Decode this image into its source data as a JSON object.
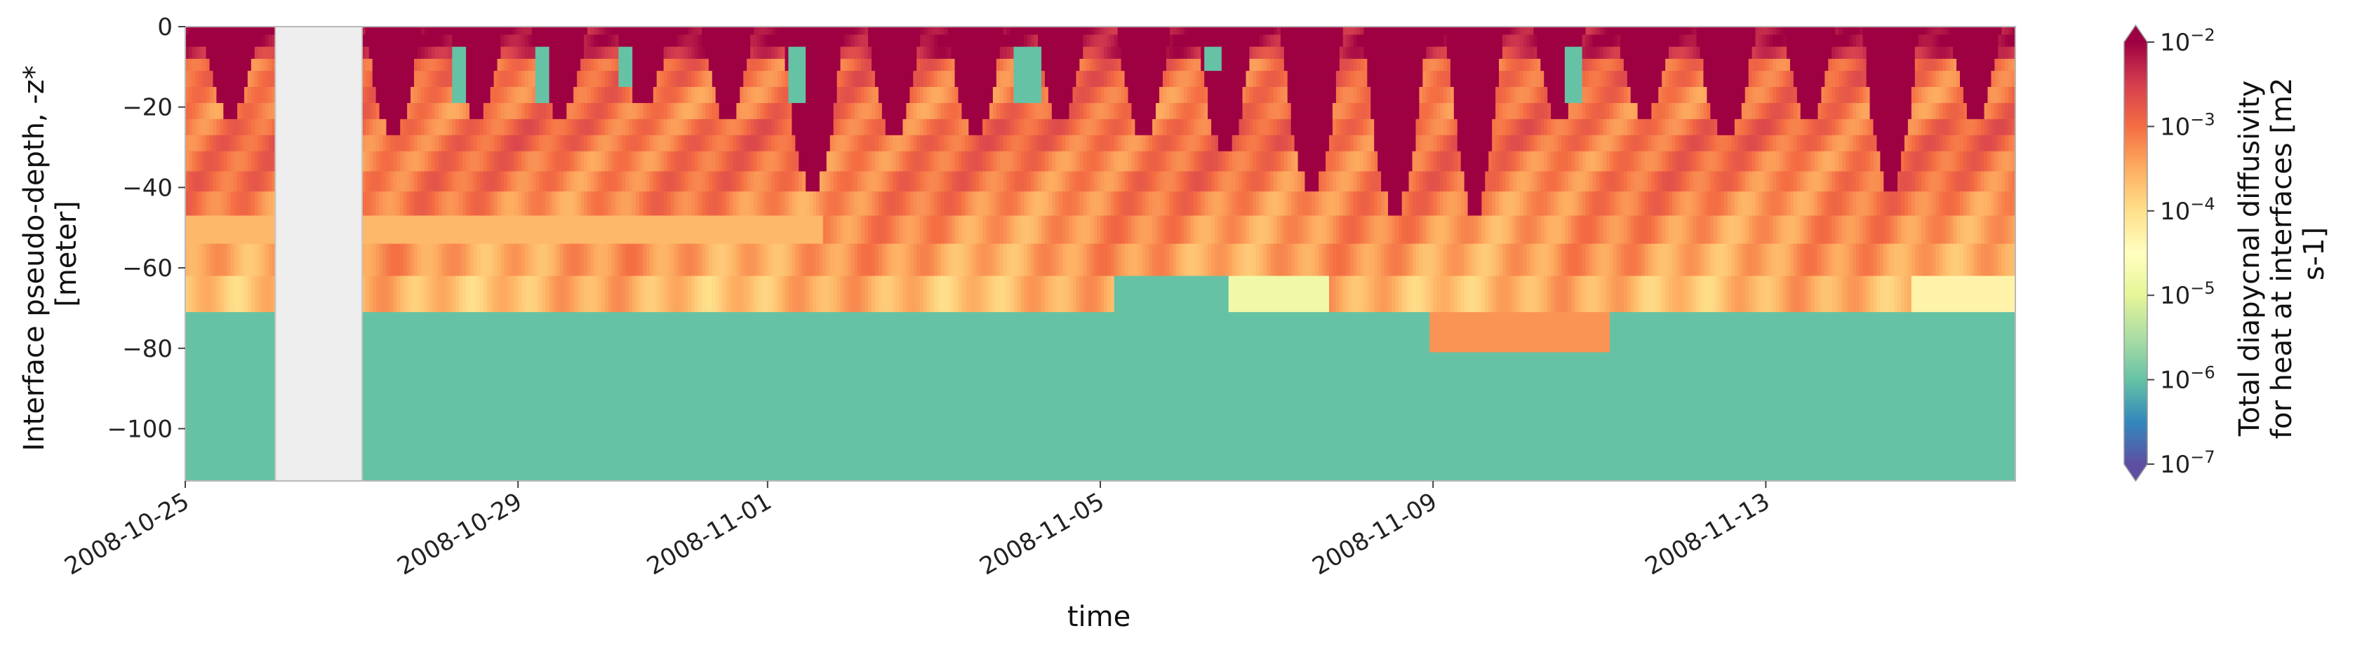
{
  "chart_data": {
    "type": "heatmap",
    "xlabel": "time",
    "ylabel_lines": [
      "Interface pseudo-depth, -z*",
      "[meter]"
    ],
    "x_range": [
      "2008-10-25",
      "2008-11-16"
    ],
    "y_range": [
      -113,
      0
    ],
    "x_ticks": [
      {
        "label": "2008-10-25",
        "date": "2008-10-25"
      },
      {
        "label": "2008-10-29",
        "date": "2008-10-29"
      },
      {
        "label": "2008-11-01",
        "date": "2008-11-01"
      },
      {
        "label": "2008-11-05",
        "date": "2008-11-05"
      },
      {
        "label": "2008-11-09",
        "date": "2008-11-09"
      },
      {
        "label": "2008-11-13",
        "date": "2008-11-13"
      }
    ],
    "y_ticks": [
      {
        "label": "0",
        "value": 0
      },
      {
        "label": "−20",
        "value": -20
      },
      {
        "label": "−40",
        "value": -40
      },
      {
        "label": "−60",
        "value": -60
      },
      {
        "label": "−80",
        "value": -80
      },
      {
        "label": "−100",
        "value": -100
      }
    ],
    "missing_period": [
      "2008-10-26T02:00",
      "2008-10-27T03:00"
    ],
    "colorbar": {
      "label_lines": [
        "Total diapycnal diffusivity",
        "for heat at interfaces [m2",
        "s-1]"
      ],
      "scale": "log",
      "range": [
        1e-07,
        0.01
      ],
      "extend": "both",
      "ticks": [
        {
          "base": "10",
          "exp": "−2",
          "value": 0.01
        },
        {
          "base": "10",
          "exp": "−3",
          "value": 0.001
        },
        {
          "base": "10",
          "exp": "−4",
          "value": 0.0001
        },
        {
          "base": "10",
          "exp": "−5",
          "value": 1e-05
        },
        {
          "base": "10",
          "exp": "−6",
          "value": 1e-06
        },
        {
          "base": "10",
          "exp": "−7",
          "value": 1e-07
        }
      ]
    },
    "colormap": "Spectral_r",
    "interfaces_m": [
      -2,
      -5,
      -8,
      -11,
      -15,
      -19,
      -23,
      -27,
      -31,
      -36,
      -41,
      -47,
      -54,
      -62,
      -71,
      -81,
      -113
    ],
    "background_log10_by_band": [
      -2.1,
      -2.1,
      -2.4,
      -3.0,
      -3.0,
      -3.1,
      -3.1,
      -3.0,
      -3.0,
      -3.1,
      -3.1,
      -3.2,
      -3.3,
      -3.4,
      -3.6,
      -6.0,
      -6.0
    ],
    "night_mixing": [
      {
        "start": "2008-10-25T05:00",
        "end": "2008-10-25T21:00",
        "depth": -23
      },
      {
        "start": "2008-10-27T04:00",
        "end": "2008-10-27T20:00",
        "depth": -27
      },
      {
        "start": "2008-10-28T04:00",
        "end": "2008-10-28T20:00",
        "depth": -23
      },
      {
        "start": "2008-10-29T04:00",
        "end": "2008-10-29T20:00",
        "depth": -23
      },
      {
        "start": "2008-10-30T04:00",
        "end": "2008-10-30T20:00",
        "depth": -19
      },
      {
        "start": "2008-10-31T05:00",
        "end": "2008-10-31T20:00",
        "depth": -23
      },
      {
        "start": "2008-11-01T04:00",
        "end": "2008-11-01T22:00",
        "depth": -41
      },
      {
        "start": "2008-11-02T05:00",
        "end": "2008-11-02T20:00",
        "depth": -27
      },
      {
        "start": "2008-11-03T04:00",
        "end": "2008-11-03T20:00",
        "depth": -27
      },
      {
        "start": "2008-11-04T05:00",
        "end": "2008-11-04T20:00",
        "depth": -23
      },
      {
        "start": "2008-11-05T05:00",
        "end": "2008-11-05T20:00",
        "depth": -27
      },
      {
        "start": "2008-11-06T04:00",
        "end": "2008-11-06T20:00",
        "depth": -31
      },
      {
        "start": "2008-11-07T04:00",
        "end": "2008-11-07T22:00",
        "depth": -41
      },
      {
        "start": "2008-11-08T04:00",
        "end": "2008-11-08T22:00",
        "depth": -47
      },
      {
        "start": "2008-11-09T04:00",
        "end": "2008-11-09T20:00",
        "depth": -47
      },
      {
        "start": "2008-11-10T05:00",
        "end": "2008-11-10T20:00",
        "depth": -23
      },
      {
        "start": "2008-11-11T05:00",
        "end": "2008-11-11T21:00",
        "depth": -23
      },
      {
        "start": "2008-11-12T04:00",
        "end": "2008-11-12T21:00",
        "depth": -27
      },
      {
        "start": "2008-11-13T05:00",
        "end": "2008-11-13T20:00",
        "depth": -23
      },
      {
        "start": "2008-11-14T04:00",
        "end": "2008-11-14T20:00",
        "depth": -41
      },
      {
        "start": "2008-11-15T05:00",
        "end": "2008-11-15T20:00",
        "depth": -23
      }
    ],
    "quiescent_patches": [
      {
        "start": "2008-10-28T05:00",
        "end": "2008-10-28T09:00",
        "top": -5,
        "bottom": -19
      },
      {
        "start": "2008-10-29T05:00",
        "end": "2008-10-29T09:00",
        "top": -5,
        "bottom": -19
      },
      {
        "start": "2008-10-30T05:00",
        "end": "2008-10-30T09:00",
        "top": -5,
        "bottom": -15
      },
      {
        "start": "2008-11-01T06:00",
        "end": "2008-11-01T11:00",
        "top": -5,
        "bottom": -19
      },
      {
        "start": "2008-11-03T23:00",
        "end": "2008-11-04T07:00",
        "top": -5,
        "bottom": -19
      },
      {
        "start": "2008-11-06T06:00",
        "end": "2008-11-06T11:00",
        "top": -5,
        "bottom": -11
      },
      {
        "start": "2008-11-10T14:00",
        "end": "2008-11-10T19:00",
        "top": -5,
        "bottom": -19
      }
    ],
    "low_diffusivity_episodes": [
      {
        "start": "2008-11-05T04:00",
        "end": "2008-11-06T13:00",
        "top": -62,
        "bottom": -71,
        "log10": -6.0
      },
      {
        "start": "2008-11-06T13:00",
        "end": "2008-11-07T18:00",
        "top": -62,
        "bottom": -71,
        "log10": -4.8
      },
      {
        "start": "2008-11-14T18:00",
        "end": "2008-11-16T00:00",
        "top": -62,
        "bottom": -71,
        "log10": -4.3
      },
      {
        "start": "2008-10-25T00:00",
        "end": "2008-11-01T16:00",
        "top": -47,
        "bottom": -54,
        "log10": -3.6
      }
    ],
    "deep_event": {
      "start": "2008-11-08T23:00",
      "end": "2008-11-11T03:00",
      "top": -71,
      "bottom": -81,
      "log10": -3.3
    }
  }
}
